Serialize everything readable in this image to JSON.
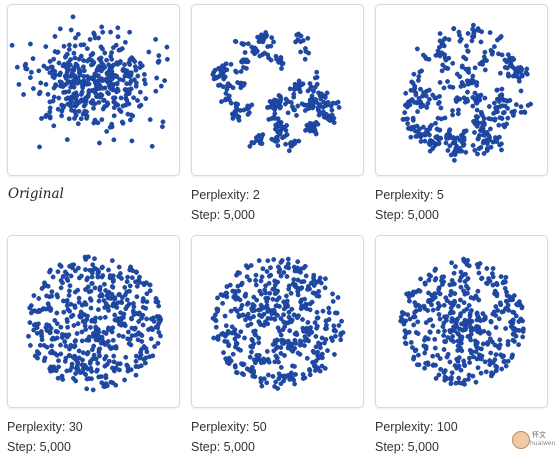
{
  "colors": {
    "dot": "#1f4aa8",
    "dot_edge": "#143a8c",
    "panel_border": "#d9d9d9"
  },
  "panels": [
    {
      "name": "original",
      "caption_lines": [
        "Original"
      ],
      "italic": true
    },
    {
      "name": "perplexity-2",
      "caption_lines": [
        "Perplexity: 2",
        "Step: 5,000"
      ],
      "italic": false
    },
    {
      "name": "perplexity-5",
      "caption_lines": [
        "Perplexity: 5",
        "Step: 5,000"
      ],
      "italic": false
    },
    {
      "name": "perplexity-30",
      "caption_lines": [
        "Perplexity: 30",
        "Step: 5,000"
      ],
      "italic": false
    },
    {
      "name": "perplexity-50",
      "caption_lines": [
        "Perplexity: 50",
        "Step: 5,000"
      ],
      "italic": false
    },
    {
      "name": "perplexity-100",
      "caption_lines": [
        "Perplexity: 100",
        "Step: 5,000"
      ],
      "italic": false
    }
  ],
  "watermark": {
    "line1": "怀文",
    "line2": "huaiwen"
  }
}
